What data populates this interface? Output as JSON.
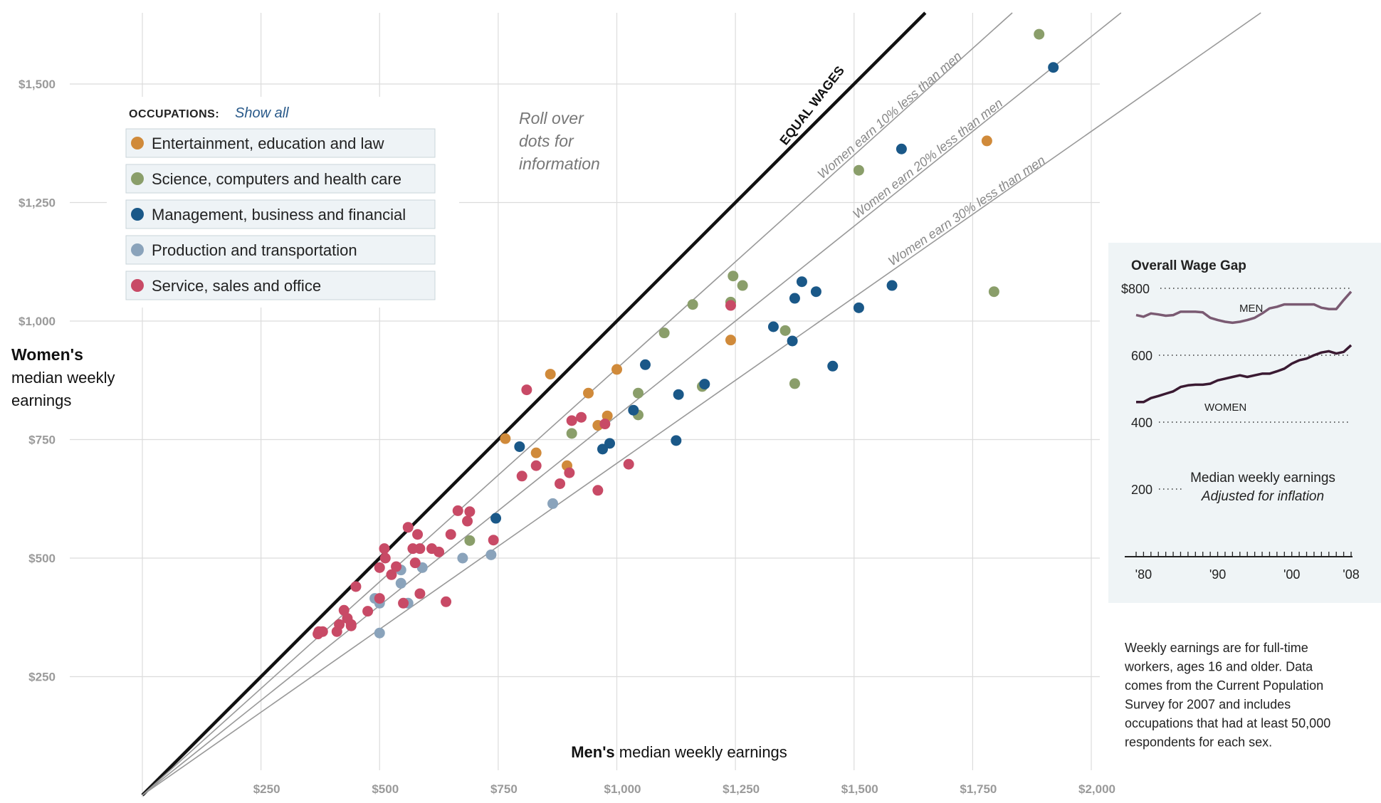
{
  "chart_data": [
    {
      "type": "scatter",
      "title": "",
      "xlabel_bold": "Men's",
      "xlabel_rest": " median weekly earnings",
      "ylabel_bold": "Women's",
      "ylabel_lines": [
        "median weekly",
        "earnings"
      ],
      "xlim": [
        0,
        2000
      ],
      "ylim": [
        0,
        1600
      ],
      "x_ticks": [
        250,
        500,
        750,
        1000,
        1250,
        1500,
        1750,
        2000
      ],
      "x_tick_labels": [
        "$250",
        "$500",
        "$750",
        "$1,000",
        "$1,250",
        "$1,500",
        "$1,750",
        "$2,000"
      ],
      "y_ticks": [
        250,
        500,
        750,
        1000,
        1250,
        1500
      ],
      "y_tick_labels": [
        "$250",
        "$500",
        "$750",
        "$1,000",
        "$1,250",
        "$1,500"
      ],
      "grid": true,
      "reference_lines": [
        {
          "ratio": 1.0,
          "label": "EQUAL WAGES",
          "style": "bold"
        },
        {
          "ratio": 0.9,
          "label": "Women earn 10% less than men",
          "style": "thin"
        },
        {
          "ratio": 0.8,
          "label": "Women earn 20% less than men",
          "style": "thin"
        },
        {
          "ratio": 0.7,
          "label": "Women earn 30% less than men",
          "style": "thin"
        }
      ],
      "annotation": [
        "Roll over",
        "dots for",
        "information"
      ],
      "legend": {
        "title": "OCCUPATIONS:",
        "show_all": "Show all",
        "placement": "top-left"
      },
      "series": [
        {
          "name": "Entertainment, education and law",
          "color": "#d08a3a",
          "points": [
            [
              765,
              752
            ],
            [
              860,
              888
            ],
            [
              830,
              722
            ],
            [
              940,
              848
            ],
            [
              1000,
              898
            ],
            [
              960,
              780
            ],
            [
              980,
              800
            ],
            [
              895,
              695
            ],
            [
              1240,
              960
            ],
            [
              1780,
              1380
            ]
          ]
        },
        {
          "name": "Science, computers and health care",
          "color": "#8a9e6a",
          "points": [
            [
              690,
              537
            ],
            [
              905,
              763
            ],
            [
              1045,
              848
            ],
            [
              1045,
              802
            ],
            [
              1100,
              975
            ],
            [
              1160,
              1035
            ],
            [
              1180,
              862
            ],
            [
              1240,
              1040
            ],
            [
              1245,
              1095
            ],
            [
              1265,
              1075
            ],
            [
              1355,
              980
            ],
            [
              1375,
              868
            ],
            [
              1510,
              1318
            ],
            [
              1795,
              1062
            ],
            [
              1890,
              1605
            ]
          ]
        },
        {
          "name": "Management, business and financial",
          "color": "#1a5888",
          "points": [
            [
              745,
              584
            ],
            [
              795,
              735
            ],
            [
              970,
              730
            ],
            [
              985,
              742
            ],
            [
              1035,
              812
            ],
            [
              1060,
              908
            ],
            [
              1125,
              748
            ],
            [
              1130,
              845
            ],
            [
              1185,
              867
            ],
            [
              1330,
              988
            ],
            [
              1370,
              958
            ],
            [
              1375,
              1048
            ],
            [
              1390,
              1083
            ],
            [
              1420,
              1062
            ],
            [
              1455,
              905
            ],
            [
              1510,
              1028
            ],
            [
              1580,
              1075
            ],
            [
              1600,
              1363
            ],
            [
              1920,
              1535
            ]
          ]
        },
        {
          "name": "Production and transportation",
          "color": "#8aa3bb",
          "points": [
            [
              490,
              415
            ],
            [
              500,
              405
            ],
            [
              500,
              342
            ],
            [
              545,
              475
            ],
            [
              545,
              447
            ],
            [
              560,
              405
            ],
            [
              590,
              480
            ],
            [
              675,
              500
            ],
            [
              735,
              507
            ],
            [
              865,
              615
            ]
          ]
        },
        {
          "name": "Service, sales and office",
          "color": "#c84a66",
          "points": [
            [
              370,
              340
            ],
            [
              372,
              345
            ],
            [
              380,
              345
            ],
            [
              410,
              345
            ],
            [
              415,
              360
            ],
            [
              425,
              390
            ],
            [
              432,
              373
            ],
            [
              440,
              360
            ],
            [
              440,
              357
            ],
            [
              450,
              440
            ],
            [
              475,
              388
            ],
            [
              500,
              415
            ],
            [
              500,
              480
            ],
            [
              510,
              520
            ],
            [
              512,
              500
            ],
            [
              525,
              465
            ],
            [
              535,
              482
            ],
            [
              550,
              405
            ],
            [
              560,
              565
            ],
            [
              570,
              520
            ],
            [
              575,
              490
            ],
            [
              580,
              550
            ],
            [
              585,
              520
            ],
            [
              585,
              425
            ],
            [
              610,
              520
            ],
            [
              625,
              513
            ],
            [
              640,
              408
            ],
            [
              650,
              550
            ],
            [
              665,
              600
            ],
            [
              685,
              578
            ],
            [
              690,
              598
            ],
            [
              740,
              538
            ],
            [
              800,
              673
            ],
            [
              810,
              855
            ],
            [
              830,
              695
            ],
            [
              880,
              657
            ],
            [
              900,
              680
            ],
            [
              905,
              790
            ],
            [
              925,
              797
            ],
            [
              960,
              643
            ],
            [
              975,
              783
            ],
            [
              1025,
              698
            ],
            [
              1240,
              1033
            ]
          ]
        }
      ]
    },
    {
      "type": "line",
      "title": "Overall Wage Gap",
      "x_tick_labels": [
        "'80",
        "'90",
        "'00",
        "'08"
      ],
      "x_range": [
        1979,
        2008
      ],
      "y_ticks": [
        800,
        600,
        400,
        200
      ],
      "y_tick_labels": [
        "$800",
        "600",
        "400",
        "200"
      ],
      "ylim": [
        0,
        850
      ],
      "note_lines": [
        "Median weekly earnings",
        "Adjusted for inflation"
      ],
      "series": [
        {
          "name": "MEN",
          "color": "#7a5a72",
          "x": [
            1979,
            1980,
            1981,
            1982,
            1983,
            1984,
            1985,
            1986,
            1987,
            1988,
            1989,
            1990,
            1991,
            1992,
            1993,
            1994,
            1995,
            1996,
            1997,
            1998,
            1999,
            2000,
            2001,
            2002,
            2003,
            2004,
            2005,
            2006,
            2007,
            2008
          ],
          "values": [
            720,
            715,
            725,
            722,
            718,
            720,
            730,
            730,
            730,
            728,
            712,
            705,
            700,
            697,
            700,
            705,
            712,
            725,
            740,
            745,
            752,
            752,
            752,
            752,
            752,
            742,
            738,
            738,
            765,
            790
          ]
        },
        {
          "name": "WOMEN",
          "color": "#3a1a32",
          "x": [
            1979,
            1980,
            1981,
            1982,
            1983,
            1984,
            1985,
            1986,
            1987,
            1988,
            1989,
            1990,
            1991,
            1992,
            1993,
            1994,
            1995,
            1996,
            1997,
            1998,
            1999,
            2000,
            2001,
            2002,
            2003,
            2004,
            2005,
            2006,
            2007,
            2008
          ],
          "values": [
            460,
            460,
            472,
            478,
            485,
            492,
            505,
            510,
            512,
            512,
            515,
            525,
            530,
            535,
            540,
            535,
            540,
            545,
            545,
            552,
            560,
            575,
            585,
            590,
            600,
            608,
            612,
            605,
            610,
            630
          ]
        }
      ]
    }
  ],
  "footnote": [
    "Weekly earnings are for full-time",
    "workers, ages 16 and older. Data",
    "comes from the Current Population",
    "Survey for 2007 and includes",
    "occupations that had at least 50,000",
    "respondents for each sex."
  ]
}
